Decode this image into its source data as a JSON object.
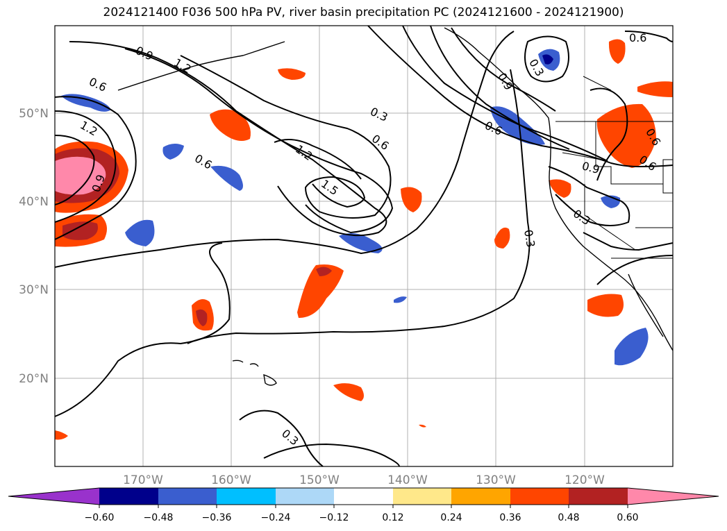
{
  "title": "2024121400 F036 500 hPa PV, river basin precipitation PC (2024121600 - 2024121900)",
  "map": {
    "lat_labels": [
      "50°N",
      "40°N",
      "30°N",
      "20°N"
    ],
    "lon_labels": [
      "170°W",
      "160°W",
      "150°W",
      "140°W",
      "130°W",
      "120°W"
    ],
    "contour_labels": [
      "0.9",
      "1.2",
      "0.6",
      "1.2",
      "0.9",
      "0.6",
      "1.2",
      "1.5",
      "0.3",
      "0.6",
      "0.9",
      "0.3",
      "0.6",
      "0.6",
      "0.9",
      "0.6",
      "0.3",
      "0.3",
      "0.3",
      "0.6"
    ]
  },
  "colorbar": {
    "colors": [
      "#9932cc",
      "#00008b",
      "#3a5ecf",
      "#00bfff",
      "#add8f7",
      "#ffffff",
      "#ffe88a",
      "#ffa500",
      "#ff4500",
      "#b22222",
      "#ff88aa"
    ],
    "tick_labels": [
      "−0.60",
      "−0.48",
      "−0.36",
      "−0.24",
      "−0.12",
      "0.12",
      "0.24",
      "0.36",
      "0.48",
      "0.60"
    ]
  }
}
